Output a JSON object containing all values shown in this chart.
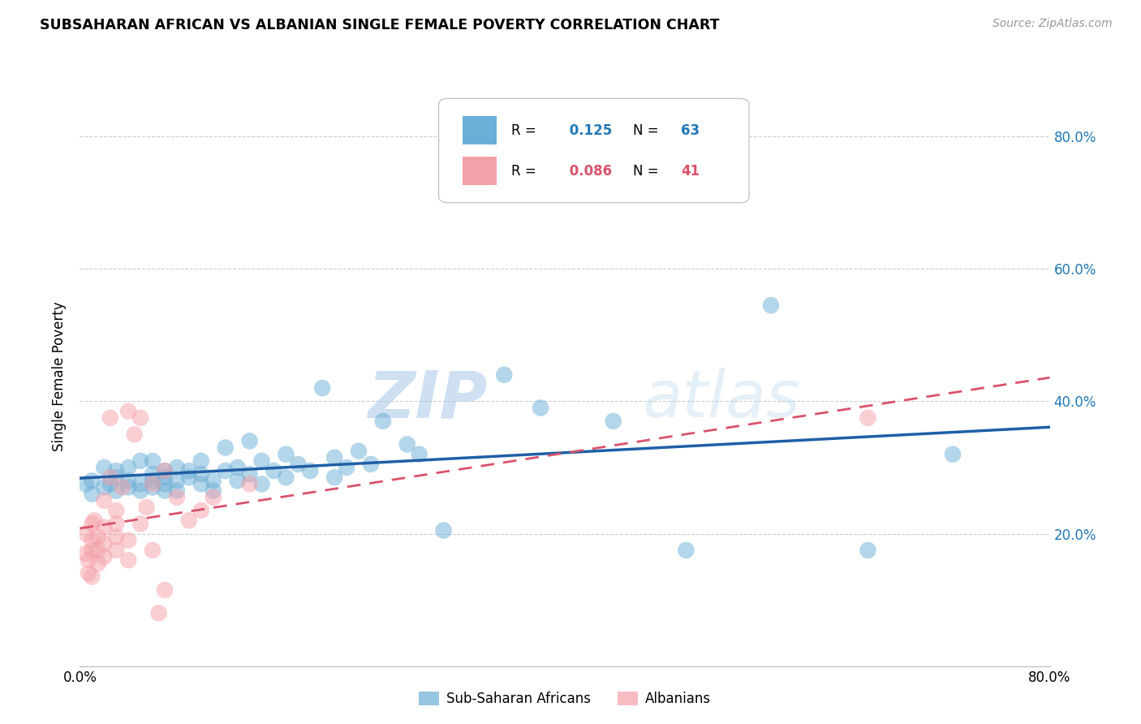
{
  "title": "SUBSAHARAN AFRICAN VS ALBANIAN SINGLE FEMALE POVERTY CORRELATION CHART",
  "source": "Source: ZipAtlas.com",
  "ylabel": "Single Female Poverty",
  "ytick_labels": [
    "20.0%",
    "40.0%",
    "60.0%",
    "80.0%"
  ],
  "ytick_values": [
    0.2,
    0.4,
    0.6,
    0.8
  ],
  "xlim": [
    0.0,
    0.8
  ],
  "ylim": [
    0.0,
    0.875
  ],
  "legend_label1": "Sub-Saharan Africans",
  "legend_label2": "Albanians",
  "R1": 0.125,
  "N1": 63,
  "R2": 0.086,
  "N2": 41,
  "blue_color": "#6baed6",
  "pink_color": "#f4a0a8",
  "blue_line_color": "#1f5fa6",
  "pink_line_color": "#d9536a",
  "watermark_zip": "ZIP",
  "watermark_atlas": "atlas",
  "background_color": "#ffffff",
  "grid_color": "#cccccc",
  "blue_scatter_x": [
    0.005,
    0.01,
    0.01,
    0.02,
    0.02,
    0.025,
    0.03,
    0.03,
    0.03,
    0.04,
    0.04,
    0.04,
    0.05,
    0.05,
    0.05,
    0.06,
    0.06,
    0.06,
    0.06,
    0.07,
    0.07,
    0.07,
    0.07,
    0.08,
    0.08,
    0.08,
    0.09,
    0.09,
    0.1,
    0.1,
    0.1,
    0.11,
    0.11,
    0.12,
    0.12,
    0.13,
    0.13,
    0.14,
    0.14,
    0.15,
    0.15,
    0.16,
    0.17,
    0.17,
    0.18,
    0.19,
    0.2,
    0.21,
    0.21,
    0.22,
    0.23,
    0.24,
    0.25,
    0.27,
    0.28,
    0.3,
    0.35,
    0.38,
    0.44,
    0.5,
    0.57,
    0.65,
    0.72
  ],
  "blue_scatter_y": [
    0.275,
    0.28,
    0.26,
    0.27,
    0.3,
    0.275,
    0.265,
    0.285,
    0.295,
    0.27,
    0.28,
    0.3,
    0.265,
    0.275,
    0.31,
    0.27,
    0.28,
    0.29,
    0.31,
    0.265,
    0.275,
    0.285,
    0.295,
    0.28,
    0.3,
    0.265,
    0.285,
    0.295,
    0.275,
    0.29,
    0.31,
    0.265,
    0.28,
    0.295,
    0.33,
    0.28,
    0.3,
    0.29,
    0.34,
    0.275,
    0.31,
    0.295,
    0.32,
    0.285,
    0.305,
    0.295,
    0.42,
    0.285,
    0.315,
    0.3,
    0.325,
    0.305,
    0.37,
    0.335,
    0.32,
    0.205,
    0.44,
    0.39,
    0.37,
    0.175,
    0.545,
    0.175,
    0.32
  ],
  "pink_scatter_x": [
    0.005,
    0.005,
    0.007,
    0.007,
    0.01,
    0.01,
    0.01,
    0.01,
    0.012,
    0.015,
    0.015,
    0.015,
    0.02,
    0.02,
    0.02,
    0.02,
    0.025,
    0.025,
    0.03,
    0.03,
    0.03,
    0.03,
    0.035,
    0.04,
    0.04,
    0.04,
    0.045,
    0.05,
    0.05,
    0.055,
    0.06,
    0.06,
    0.065,
    0.07,
    0.07,
    0.08,
    0.09,
    0.1,
    0.11,
    0.14,
    0.65
  ],
  "pink_scatter_y": [
    0.2,
    0.17,
    0.16,
    0.14,
    0.175,
    0.19,
    0.215,
    0.135,
    0.22,
    0.155,
    0.175,
    0.195,
    0.165,
    0.185,
    0.21,
    0.25,
    0.375,
    0.285,
    0.175,
    0.195,
    0.215,
    0.235,
    0.27,
    0.16,
    0.19,
    0.385,
    0.35,
    0.375,
    0.215,
    0.24,
    0.275,
    0.175,
    0.08,
    0.115,
    0.295,
    0.255,
    0.22,
    0.235,
    0.255,
    0.275,
    0.375
  ]
}
